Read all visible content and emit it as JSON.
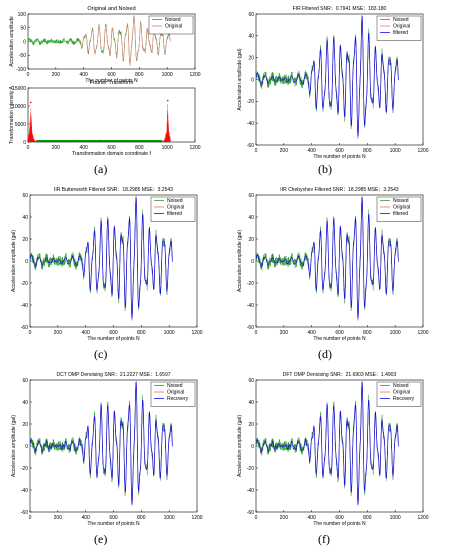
{
  "captions": [
    "(a)",
    "(b)",
    "(c)",
    "(d)",
    "(e)",
    "(f)"
  ],
  "colors": {
    "noised": "#2e9e2e",
    "original": "#f07070",
    "filtered": "#1010e0",
    "fft": "#ff0000",
    "fft_green": "#00a000"
  },
  "chart_data": [
    {
      "id": "a-top",
      "type": "line",
      "title": "Original and Noised",
      "xlabel": "The number of points N",
      "ylabel": "Acceleration amplitude",
      "xlim": [
        0,
        1200
      ],
      "ylim": [
        -100,
        100
      ],
      "xticks": [
        0,
        200,
        400,
        600,
        800,
        1000,
        1200
      ],
      "yticks": [
        -100,
        -50,
        0,
        50,
        100
      ],
      "legend": {
        "position": "top-right",
        "entries": [
          "Noised",
          "Original"
        ]
      },
      "series": [
        {
          "name": "Noised"
        },
        {
          "name": "Original"
        }
      ],
      "signal": {
        "n": 1024,
        "envelope": [
          [
            0,
            5
          ],
          [
            370,
            6
          ],
          [
            420,
            28
          ],
          [
            520,
            30
          ],
          [
            700,
            42
          ],
          [
            760,
            50
          ],
          [
            820,
            36
          ],
          [
            900,
            30
          ],
          [
            1024,
            18
          ]
        ],
        "period": 50
      }
    },
    {
      "id": "a-bottom",
      "type": "line",
      "title": "Fourier Transform",
      "xlabel": "Transformation domain coordinate f",
      "ylabel": "Transformation intensity A",
      "xlim": [
        0,
        1200
      ],
      "ylim": [
        0,
        15000
      ],
      "xticks": [
        0,
        200,
        400,
        600,
        800,
        1000,
        1200
      ],
      "yticks": [
        0,
        5000,
        10000,
        15000
      ],
      "peaks": [
        {
          "x": 20,
          "y": 11000
        },
        {
          "x": 1004,
          "y": 11500
        }
      ]
    },
    {
      "id": "b",
      "type": "line",
      "title": "FIR Filtered",
      "metrics": {
        "snr_label": "SNR：",
        "snr": "0.7941",
        "mse_label": "MSE：",
        "mse": "183.180"
      },
      "xlabel": "The number of points N",
      "ylabel": "Acceleration amplitude (gal)",
      "xlim": [
        0,
        1200
      ],
      "ylim": [
        -60,
        60
      ],
      "xticks": [
        0,
        200,
        400,
        600,
        800,
        1000,
        1200
      ],
      "yticks": [
        -60,
        -40,
        -20,
        0,
        20,
        40,
        60
      ],
      "legend": {
        "position": "top-right",
        "entries": [
          "Noised",
          "Original",
          "filtered"
        ]
      },
      "series": [
        {
          "name": "Noised"
        },
        {
          "name": "Original"
        },
        {
          "name": "filtered"
        }
      ]
    },
    {
      "id": "c",
      "type": "line",
      "title": "IIR Butterworth Filtered",
      "metrics": {
        "snr_label": "SNR：",
        "snr": "18.2985",
        "mse_label": "MSE：",
        "mse": "3.2543"
      },
      "xlabel": "The number of points N",
      "ylabel": "Acceleration amplitude (gal)",
      "xlim": [
        0,
        1200
      ],
      "ylim": [
        -60,
        60
      ],
      "xticks": [
        0,
        200,
        400,
        600,
        800,
        1000,
        1200
      ],
      "yticks": [
        -60,
        -40,
        -20,
        0,
        20,
        40,
        60
      ],
      "legend": {
        "position": "top-right",
        "entries": [
          "Noised",
          "Original",
          "filtered"
        ]
      },
      "series": [
        {
          "name": "Noised"
        },
        {
          "name": "Original"
        },
        {
          "name": "filtered"
        }
      ]
    },
    {
      "id": "d",
      "type": "line",
      "title": "IIR Chebyshev Filtered",
      "metrics": {
        "snr_label": "SNR：",
        "snr": "18.2985",
        "mse_label": "MSE：",
        "mse": "3.2543"
      },
      "xlabel": "The number of points N",
      "ylabel": "Acceleration amplitude (gal)",
      "xlim": [
        0,
        1200
      ],
      "ylim": [
        -60,
        60
      ],
      "xticks": [
        0,
        200,
        400,
        600,
        800,
        1000,
        1200
      ],
      "yticks": [
        -60,
        -40,
        -20,
        0,
        20,
        40,
        60
      ],
      "legend": {
        "position": "top-right",
        "entries": [
          "Noised",
          "Original",
          "filtered"
        ]
      },
      "series": [
        {
          "name": "Noised"
        },
        {
          "name": "Original"
        },
        {
          "name": "filtered"
        }
      ]
    },
    {
      "id": "e",
      "type": "line",
      "title": "DCT OMP Denoising",
      "metrics": {
        "snr_label": "SNR：",
        "snr": "21.2227",
        "mse_label": "MSE：",
        "mse": "1.6597"
      },
      "xlabel": "The number of points N",
      "ylabel": "Acceleration amplitude (gal)",
      "xlim": [
        0,
        1200
      ],
      "ylim": [
        -60,
        60
      ],
      "xticks": [
        0,
        200,
        400,
        600,
        800,
        1000,
        1200
      ],
      "yticks": [
        -60,
        -40,
        -20,
        0,
        20,
        40,
        60
      ],
      "legend": {
        "position": "top-right",
        "entries": [
          "Noised",
          "Original",
          "Recovery"
        ]
      },
      "series": [
        {
          "name": "Noised"
        },
        {
          "name": "Original"
        },
        {
          "name": "Recovery"
        }
      ]
    },
    {
      "id": "f",
      "type": "line",
      "title": "DFT OMP Denoising",
      "metrics": {
        "snr_label": "SNR：",
        "snr": "21.6903",
        "mse_label": "MSE：",
        "mse": "1.4903"
      },
      "xlabel": "The number of points N",
      "ylabel": "Acceleration amplitude (gal)",
      "xlim": [
        0,
        1200
      ],
      "ylim": [
        -60,
        60
      ],
      "xticks": [
        0,
        200,
        400,
        600,
        800,
        1000,
        1200
      ],
      "yticks": [
        -60,
        -40,
        -20,
        0,
        20,
        40,
        60
      ],
      "legend": {
        "position": "top-right",
        "entries": [
          "Noised",
          "Original",
          "Recovery"
        ]
      },
      "series": [
        {
          "name": "Noised"
        },
        {
          "name": "Original"
        },
        {
          "name": "Recovery"
        }
      ]
    }
  ]
}
